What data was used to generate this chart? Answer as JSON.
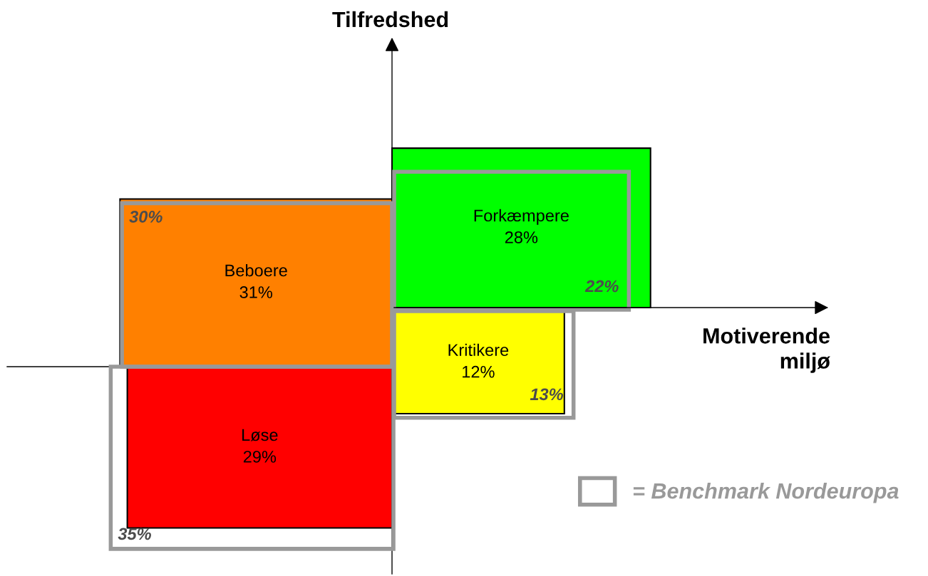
{
  "chart_data": {
    "type": "other",
    "xlabel": "Motiverende\nmiljø",
    "ylabel": "Tilfredshed",
    "categories": [
      "Forkæmpere",
      "Kritikere",
      "Beboere",
      "Løse"
    ],
    "series": [
      {
        "values": [
          28,
          12,
          31,
          29
        ],
        "colors": [
          "#00ff00",
          "#ffff00",
          "#ff8000",
          "#ff0000"
        ],
        "value_labels": [
          "28%",
          "12%",
          "31%",
          "29%"
        ]
      },
      {
        "name": "= Benchmark Nordeuropa",
        "color": "#999999",
        "values": [
          22,
          13,
          30,
          35
        ],
        "value_labels": [
          "22%",
          "13%",
          "30%",
          "35%"
        ]
      }
    ],
    "legend": "bottom right"
  }
}
